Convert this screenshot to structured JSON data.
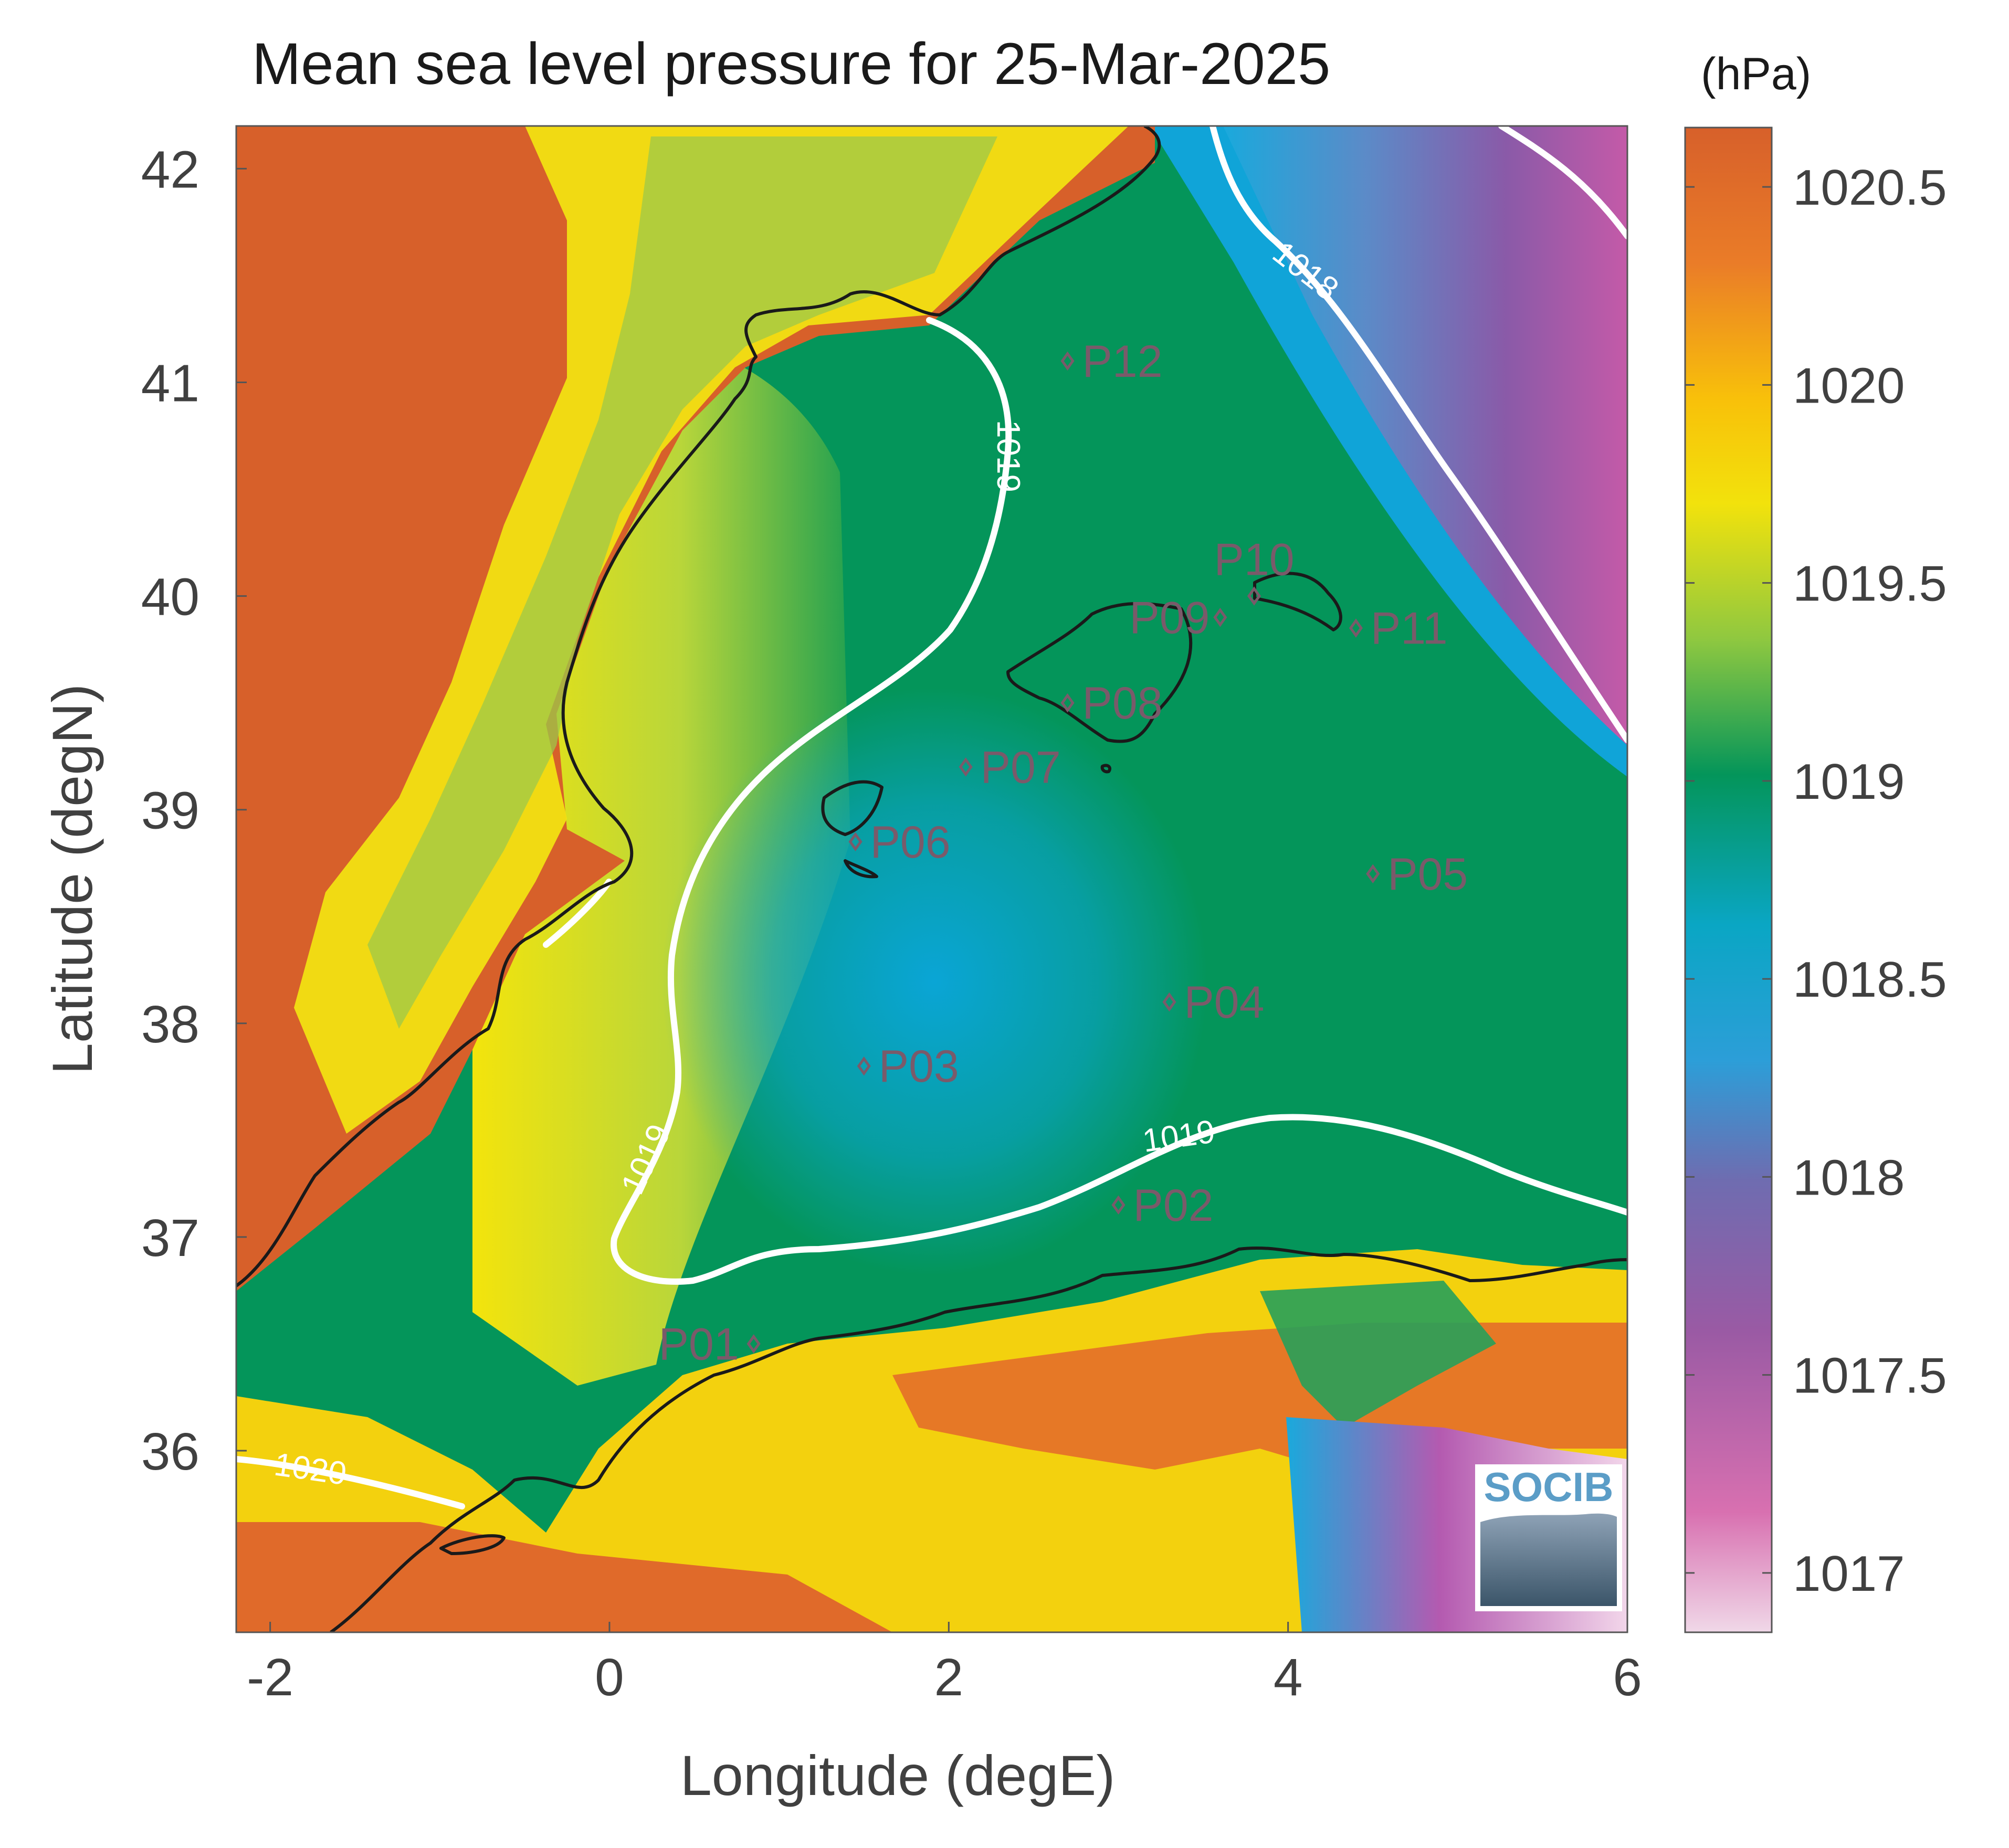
{
  "title": "Mean sea level pressure for 25-Mar-2025",
  "xlabel": "Longitude (degE)",
  "ylabel": "Latitude (degN)",
  "colorbar": {
    "unit_label": "(hPa)",
    "ticks": [
      1017,
      1017.5,
      1018,
      1018.5,
      1019,
      1019.5,
      1020,
      1020.5
    ],
    "tick_labels": [
      "1017",
      "1017.5",
      "1018",
      "1018.5",
      "1019",
      "1019.5",
      "1020",
      "1020.5"
    ],
    "range": [
      1016.85,
      1020.65
    ]
  },
  "logo": {
    "text": "SOCIB"
  },
  "chart_data": {
    "type": "heatmap",
    "title": "Mean sea level pressure for 25-Mar-2025",
    "xlabel": "Longitude (degE)",
    "ylabel": "Latitude (degN)",
    "xlim": [
      -2.2,
      6
    ],
    "ylim": [
      35.15,
      42.2
    ],
    "xticks": [
      -2,
      0,
      2,
      4,
      6
    ],
    "xtick_labels": [
      "-2",
      "0",
      "2",
      "4",
      "6"
    ],
    "yticks": [
      36,
      37,
      38,
      39,
      40,
      41,
      42
    ],
    "ytick_labels": [
      "36",
      "37",
      "38",
      "39",
      "40",
      "41",
      "42"
    ],
    "contour_levels": [
      {
        "value": 1018,
        "label": "1018"
      },
      {
        "value": 1019,
        "label": "1019"
      },
      {
        "value": 1020,
        "label": "1020"
      }
    ],
    "stations": [
      {
        "name": "P01",
        "lon": 0.85,
        "lat": 36.5
      },
      {
        "name": "P02",
        "lon": 3.0,
        "lat": 37.15
      },
      {
        "name": "P03",
        "lon": 1.5,
        "lat": 37.8
      },
      {
        "name": "P04",
        "lon": 3.3,
        "lat": 38.1
      },
      {
        "name": "P05",
        "lon": 4.5,
        "lat": 38.7
      },
      {
        "name": "P06",
        "lon": 1.45,
        "lat": 38.85
      },
      {
        "name": "P07",
        "lon": 2.1,
        "lat": 39.2
      },
      {
        "name": "P08",
        "lon": 2.7,
        "lat": 39.5
      },
      {
        "name": "P09",
        "lon": 3.6,
        "lat": 39.9
      },
      {
        "name": "P10",
        "lon": 3.8,
        "lat": 40.0
      },
      {
        "name": "P11",
        "lon": 4.4,
        "lat": 39.85
      },
      {
        "name": "P12",
        "lon": 2.7,
        "lat": 41.1
      }
    ]
  }
}
